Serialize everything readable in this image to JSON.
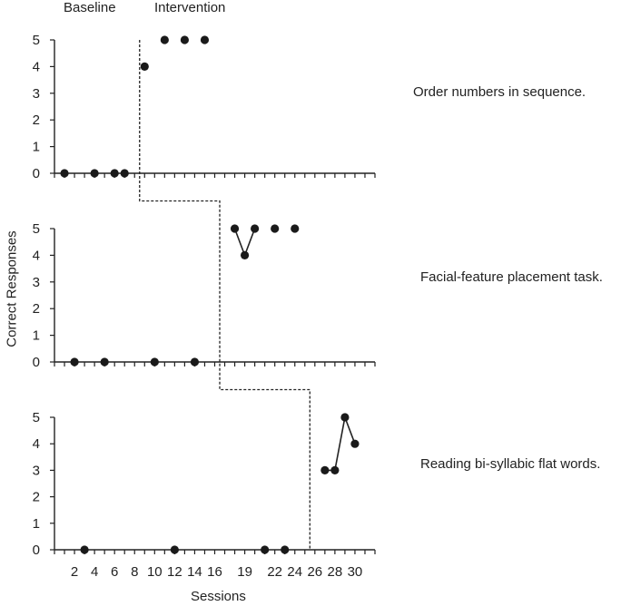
{
  "chart_data": {
    "type": "line",
    "phase_labels": [
      "Baseline",
      "Intervention"
    ],
    "ylabel": "Correct Responses",
    "xlabel": "Sessions",
    "xlim": [
      0,
      32
    ],
    "x_ticks": [
      2,
      4,
      6,
      8,
      10,
      12,
      14,
      16,
      19,
      22,
      24,
      26,
      28,
      30
    ],
    "ylim": [
      0,
      5
    ],
    "y_ticks": [
      0,
      1,
      2,
      3,
      4,
      5
    ],
    "grid": false,
    "phase_change_after_session": [
      8,
      16,
      25
    ],
    "panels": [
      {
        "label": "Order numbers in sequence.",
        "baseline": {
          "x": [
            1,
            4,
            6,
            7
          ],
          "y": [
            0,
            0,
            0,
            0
          ],
          "connected": false
        },
        "intervention": {
          "x": [
            9,
            11,
            13,
            15
          ],
          "y": [
            4,
            5,
            5,
            5
          ],
          "connected": false
        }
      },
      {
        "label": "Facial-feature placement task.",
        "baseline": {
          "x": [
            2,
            5,
            10,
            14
          ],
          "y": [
            0,
            0,
            0,
            0
          ],
          "connected": false
        },
        "intervention": {
          "x": [
            18,
            19,
            20,
            22,
            24
          ],
          "y": [
            5,
            4,
            5,
            5,
            5
          ],
          "connected_segments": [
            [
              0,
              2
            ]
          ]
        }
      },
      {
        "label": "Reading bi-syllabic flat words.",
        "baseline": {
          "x": [
            3,
            12,
            21,
            23
          ],
          "y": [
            0,
            0,
            0,
            0
          ],
          "connected": false
        },
        "intervention": {
          "x": [
            27,
            28,
            29,
            30
          ],
          "y": [
            3,
            3,
            5,
            4
          ],
          "connected_segments": [
            [
              0,
              3
            ]
          ]
        }
      }
    ]
  }
}
